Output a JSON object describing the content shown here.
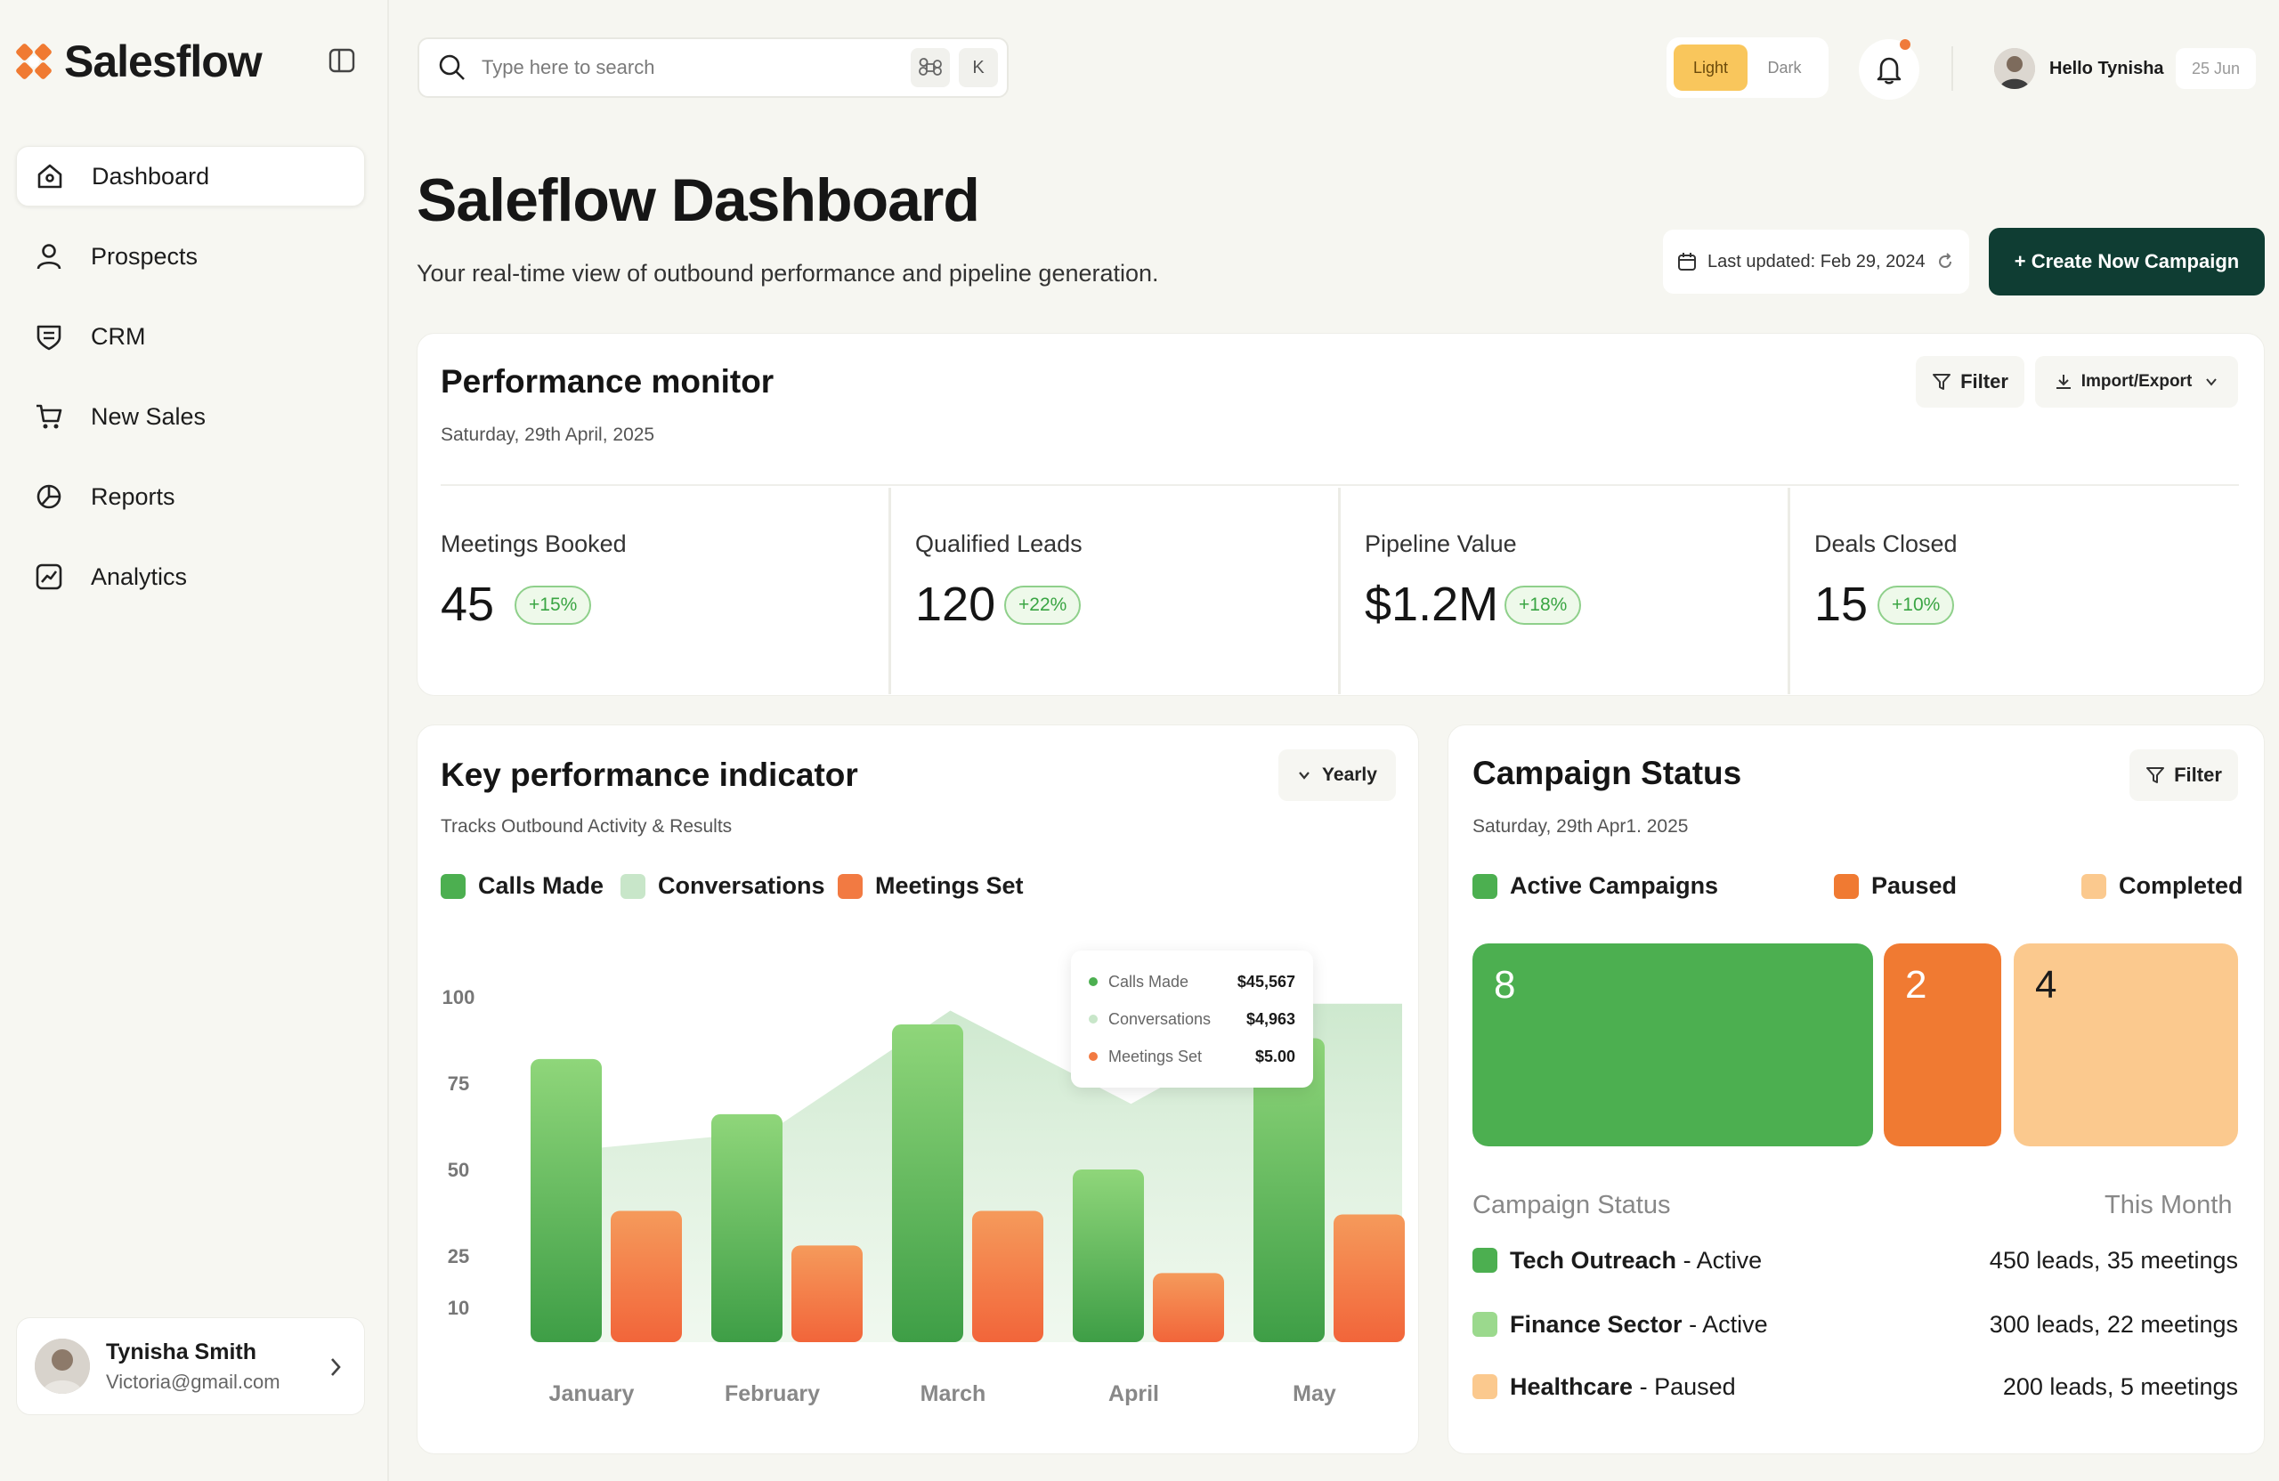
{
  "app": {
    "name": "Salesflow"
  },
  "sidebar": {
    "items": [
      {
        "label": "Dashboard"
      },
      {
        "label": "Prospects"
      },
      {
        "label": "CRM"
      },
      {
        "label": "New Sales"
      },
      {
        "label": "Reports"
      },
      {
        "label": "Analytics"
      }
    ],
    "user": {
      "name": "Tynisha Smith",
      "email": "Victoria@gmail.com"
    }
  },
  "topbar": {
    "search_placeholder": "Type here to search",
    "shortcut_key": "K",
    "theme": {
      "light": "Light",
      "dark": "Dark"
    },
    "greeting": "Hello Tynisha",
    "date": "25 Jun"
  },
  "header": {
    "title": "Saleflow Dashboard",
    "subtitle": "Your real-time view of outbound performance and pipeline generation.",
    "last_updated": "Last updated: Feb 29, 2024",
    "cta": "+ Create Now Campaign"
  },
  "performance": {
    "title": "Performance monitor",
    "date": "Saturday, 29th April, 2025",
    "filter": "Filter",
    "import_export": "Import/Export",
    "metrics": [
      {
        "label": "Meetings Booked",
        "value": "45",
        "change": "+15%"
      },
      {
        "label": "Qualified Leads",
        "value": "120",
        "change": "+22%"
      },
      {
        "label": "Pipeline Value",
        "value": "$1.2M",
        "change": "+18%"
      },
      {
        "label": "Deals Closed",
        "value": "15",
        "change": "+10%"
      }
    ]
  },
  "kpi": {
    "title": "Key performance indicator",
    "subtitle": "Tracks Outbound Activity & Results",
    "period": "Yearly",
    "tooltip": [
      {
        "label": "Calls Made",
        "value": "$45,567",
        "color": "#4caf50"
      },
      {
        "label": "Conversations",
        "value": "$4,963",
        "color": "#c8e6c9"
      },
      {
        "label": "Meetings Set",
        "value": "$5.00",
        "color": "#f27a42"
      }
    ]
  },
  "chart_data": {
    "type": "bar",
    "title": "Key performance indicator",
    "categories": [
      "January",
      "February",
      "March",
      "April",
      "May"
    ],
    "series": [
      {
        "name": "Calls Made",
        "color": "#4caf50",
        "values": [
          82,
          66,
          92,
          50,
          88
        ]
      },
      {
        "name": "Conversations",
        "color": "#c8e6c9",
        "values": [
          56,
          61,
          96,
          69,
          98
        ]
      },
      {
        "name": "Meetings Set",
        "color": "#f27a42",
        "values": [
          38,
          28,
          38,
          20,
          37
        ]
      }
    ],
    "y_ticks": [
      100,
      75,
      50,
      25,
      10
    ],
    "ylim": [
      0,
      100
    ]
  },
  "campaign": {
    "title": "Campaign Status",
    "date": "Saturday, 29th Apr1. 2025",
    "filter": "Filter",
    "legend": [
      {
        "label": "Active Campaigns",
        "color": "#4caf50"
      },
      {
        "label": "Paused",
        "color": "#f07a32"
      },
      {
        "label": "Completed",
        "color": "#fbc98e"
      }
    ],
    "blocks": [
      {
        "value": "8",
        "color": "#4caf50"
      },
      {
        "value": "2",
        "color": "#f07a32"
      },
      {
        "value": "4",
        "color": "#fbc98e"
      }
    ],
    "list_header": "Campaign Status",
    "list_period": "This Month",
    "rows": [
      {
        "name": "Tech Outreach",
        "status": " - Active",
        "stats": "450 leads, 35 meetings",
        "color": "#4caf50"
      },
      {
        "name": "Finance Sector",
        "status": " - Active",
        "stats": "300 leads, 22 meetings",
        "color": "#9bd98d"
      },
      {
        "name": "Healthcare",
        "status": " - Paused",
        "stats": "200 leads, 5 meetings",
        "color": "#fbc98e"
      }
    ]
  }
}
